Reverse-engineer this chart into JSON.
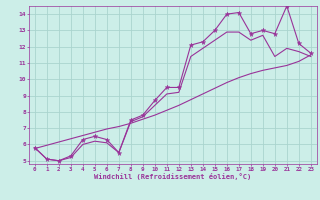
{
  "xlabel": "Windchill (Refroidissement éolien,°C)",
  "ylabel": "",
  "bg_color": "#cceee8",
  "grid_color": "#aad4ce",
  "line_color": "#993399",
  "x_data": [
    0,
    1,
    2,
    3,
    4,
    5,
    6,
    7,
    8,
    9,
    10,
    11,
    12,
    13,
    14,
    15,
    16,
    17,
    18,
    19,
    20,
    21,
    22,
    23
  ],
  "y_actual": [
    5.8,
    5.1,
    5.0,
    5.3,
    6.3,
    6.5,
    6.3,
    5.5,
    7.5,
    7.8,
    8.7,
    9.5,
    9.5,
    12.1,
    12.3,
    13.0,
    14.0,
    14.1,
    12.8,
    13.0,
    12.8,
    14.5,
    12.2,
    11.6
  ],
  "y_lower": [
    5.8,
    5.1,
    5.0,
    5.2,
    6.0,
    6.2,
    6.1,
    5.5,
    7.4,
    7.7,
    8.4,
    9.1,
    9.2,
    11.4,
    11.9,
    12.4,
    12.9,
    12.9,
    12.4,
    12.7,
    11.4,
    11.9,
    11.7,
    11.4
  ],
  "y_reg": [
    5.75,
    5.95,
    6.15,
    6.35,
    6.55,
    6.75,
    6.95,
    7.1,
    7.3,
    7.55,
    7.8,
    8.1,
    8.4,
    8.75,
    9.1,
    9.45,
    9.8,
    10.1,
    10.35,
    10.55,
    10.7,
    10.85,
    11.1,
    11.5
  ],
  "xlim": [
    -0.5,
    23.5
  ],
  "ylim": [
    4.8,
    14.5
  ],
  "xticks": [
    0,
    1,
    2,
    3,
    4,
    5,
    6,
    7,
    8,
    9,
    10,
    11,
    12,
    13,
    14,
    15,
    16,
    17,
    18,
    19,
    20,
    21,
    22,
    23
  ],
  "yticks": [
    5,
    6,
    7,
    8,
    9,
    10,
    11,
    12,
    13,
    14
  ]
}
